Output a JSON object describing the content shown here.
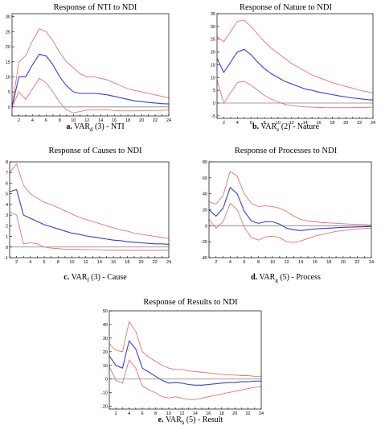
{
  "colors": {
    "band": "#e8736f",
    "center": "#3a3ae0",
    "zero": "#808080",
    "frame": "#000000"
  },
  "chart_data": [
    {
      "type": "line",
      "title": "Response of NTI to NDI",
      "caption": {
        "bold": "a.",
        "pre": " VAR",
        "sub": "d",
        "post": " (3) - NTI"
      },
      "x": [
        1,
        2,
        3,
        4,
        5,
        6,
        7,
        8,
        9,
        10,
        11,
        12,
        13,
        14,
        15,
        16,
        17,
        18,
        19,
        20,
        21,
        22,
        23,
        24
      ],
      "xticks": [
        2,
        4,
        6,
        8,
        10,
        12,
        14,
        16,
        18,
        20,
        22,
        24
      ],
      "yticks": [
        0,
        5,
        10,
        15,
        20,
        25,
        30
      ],
      "ylim": [
        -3,
        31
      ],
      "series": [
        {
          "role": "upper",
          "values": [
            0,
            15,
            17,
            22,
            26,
            25,
            22,
            18,
            15,
            13,
            11,
            10,
            10,
            9.5,
            9,
            8,
            7,
            6,
            5.5,
            5,
            4.5,
            4,
            3.5,
            3
          ]
        },
        {
          "role": "center",
          "values": [
            0,
            10,
            10,
            14,
            17.5,
            17,
            14,
            10,
            7,
            5,
            4.5,
            4.5,
            4.5,
            4.3,
            4,
            3.5,
            3,
            2.5,
            2,
            1.8,
            1.5,
            1.3,
            1.1,
            1
          ]
        },
        {
          "role": "lower",
          "values": [
            0,
            5,
            2.5,
            6,
            9.5,
            8,
            5,
            1.5,
            -1,
            -2,
            -1.5,
            -1,
            -1,
            -1,
            -1,
            -1.2,
            -1.3,
            -1.3,
            -1.3,
            -1.3,
            -1.2,
            -1.2,
            -1.1,
            -1
          ]
        }
      ]
    },
    {
      "type": "line",
      "title": "Response of Nature to NDI",
      "caption": {
        "bold": "b.",
        "pre": " VAR",
        "sub": "e",
        "post": " (2) - Nature"
      },
      "x": [
        1,
        2,
        3,
        4,
        5,
        6,
        7,
        8,
        9,
        10,
        11,
        12,
        13,
        14,
        15,
        16,
        17,
        18,
        19,
        20,
        21,
        22,
        23,
        24
      ],
      "xticks": [
        2,
        4,
        6,
        8,
        10,
        12,
        14,
        16,
        18,
        20,
        22,
        24
      ],
      "yticks": [
        -5,
        0,
        5,
        10,
        15,
        20,
        25,
        30,
        35
      ],
      "ylim": [
        -6,
        35
      ],
      "series": [
        {
          "role": "upper",
          "values": [
            26,
            24,
            28,
            32,
            32.5,
            30,
            27,
            24,
            21.5,
            19.5,
            17.5,
            15.5,
            14,
            12.5,
            11,
            10,
            9,
            8,
            7.2,
            6.5,
            5.8,
            5,
            4.5,
            4
          ]
        },
        {
          "role": "center",
          "values": [
            17.5,
            12,
            16,
            20,
            21,
            19,
            16,
            13.5,
            11.5,
            10,
            8.5,
            7.5,
            6.5,
            5.5,
            5,
            4.3,
            3.8,
            3.3,
            2.8,
            2.4,
            2,
            1.7,
            1.4,
            1.2
          ]
        },
        {
          "role": "lower",
          "values": [
            9,
            0,
            4,
            8,
            8.5,
            7,
            5,
            3,
            1.5,
            0.5,
            -0.5,
            -1,
            -1.3,
            -1.5,
            -1.6,
            -1.7,
            -1.8,
            -1.8,
            -1.8,
            -1.8,
            -1.8,
            -1.7,
            -1.7,
            -1.6
          ]
        }
      ]
    },
    {
      "type": "line",
      "title": "Response of Causes to NDI",
      "caption": {
        "bold": "c.",
        "pre": " VAR",
        "sub": "f",
        "post": " (3) - Cause"
      },
      "x": [
        1,
        2,
        3,
        4,
        5,
        6,
        7,
        8,
        9,
        10,
        11,
        12,
        13,
        14,
        15,
        16,
        17,
        18,
        19,
        20,
        21,
        22,
        23,
        24
      ],
      "xticks": [
        2,
        4,
        6,
        8,
        10,
        12,
        14,
        16,
        18,
        20,
        22,
        24
      ],
      "yticks": [
        -1,
        0,
        1,
        2,
        3,
        4,
        5,
        6,
        7,
        8
      ],
      "ylim": [
        -1,
        8
      ],
      "series": [
        {
          "role": "upper",
          "values": [
            7,
            7.8,
            5.8,
            5,
            4.6,
            4.2,
            4,
            3.7,
            3.4,
            3.1,
            2.8,
            2.6,
            2.4,
            2.2,
            2,
            1.8,
            1.6,
            1.5,
            1.3,
            1.2,
            1.1,
            1,
            0.9,
            0.8
          ]
        },
        {
          "role": "center",
          "values": [
            5.2,
            5.4,
            3,
            2.7,
            2.4,
            2.1,
            1.9,
            1.7,
            1.5,
            1.3,
            1.2,
            1.05,
            0.95,
            0.85,
            0.75,
            0.65,
            0.6,
            0.5,
            0.45,
            0.4,
            0.35,
            0.3,
            0.3,
            0.25
          ]
        },
        {
          "role": "lower",
          "values": [
            3.3,
            3,
            0.3,
            0.4,
            0.3,
            0,
            -0.1,
            -0.15,
            -0.2,
            -0.2,
            -0.2,
            -0.25,
            -0.25,
            -0.25,
            -0.3,
            -0.3,
            -0.3,
            -0.3,
            -0.3,
            -0.3,
            -0.3,
            -0.3,
            -0.3,
            -0.3
          ]
        }
      ]
    },
    {
      "type": "line",
      "title": "Response of Processes to NDI",
      "caption": {
        "bold": "d.",
        "pre": " VAR",
        "sub": "g",
        "post": " (5) - Process"
      },
      "x": [
        1,
        2,
        3,
        4,
        5,
        6,
        7,
        8,
        9,
        10,
        11,
        12,
        13,
        14,
        15,
        16,
        17,
        18,
        19,
        20,
        21,
        22,
        23,
        24
      ],
      "xticks": [
        2,
        4,
        6,
        8,
        10,
        12,
        14,
        16,
        18,
        20,
        22,
        24
      ],
      "yticks": [
        -40,
        -20,
        0,
        20,
        40,
        60,
        80
      ],
      "ylim": [
        -40,
        80
      ],
      "series": [
        {
          "role": "upper",
          "values": [
            30,
            27,
            38,
            68,
            62,
            40,
            28,
            24,
            25,
            24,
            22,
            18,
            12,
            8,
            6,
            5,
            4,
            3.5,
            3,
            2.5,
            2,
            1.8,
            1.5,
            1
          ]
        },
        {
          "role": "center",
          "values": [
            20,
            12,
            22,
            48,
            40,
            18,
            6,
            3,
            5,
            5,
            2,
            -3,
            -5,
            -6,
            -5,
            -4,
            -3.5,
            -3,
            -2.5,
            -2,
            -1.8,
            -1.5,
            -1.2,
            -1
          ]
        },
        {
          "role": "lower",
          "values": [
            8,
            -3,
            5,
            28,
            20,
            -2,
            -15,
            -18,
            -14,
            -13,
            -15,
            -20,
            -21,
            -19,
            -16,
            -13,
            -11,
            -9,
            -7,
            -6,
            -5,
            -4,
            -3.5,
            -3
          ]
        }
      ]
    },
    {
      "type": "line",
      "title": "Response of Results to NDI",
      "caption": {
        "bold": "e.",
        "pre": " VAR",
        "sub": "h",
        "post": " (5) - Result"
      },
      "x": [
        1,
        2,
        3,
        4,
        5,
        6,
        7,
        8,
        9,
        10,
        11,
        12,
        13,
        14,
        15,
        16,
        17,
        18,
        19,
        20,
        21,
        22,
        23,
        24
      ],
      "xticks": [
        2,
        4,
        6,
        8,
        10,
        12,
        14,
        16,
        18,
        20,
        22,
        24
      ],
      "yticks": [
        -20,
        -10,
        0,
        10,
        20,
        30,
        40,
        50
      ],
      "ylim": [
        -22,
        50
      ],
      "series": [
        {
          "role": "upper",
          "values": [
            26,
            21,
            20,
            42,
            35,
            20,
            16,
            13,
            10,
            8,
            7,
            7,
            6,
            5.5,
            5,
            4.5,
            4,
            3.5,
            3,
            3,
            2.5,
            2.5,
            2,
            2
          ]
        },
        {
          "role": "center",
          "values": [
            17,
            10,
            8,
            28,
            22,
            8,
            5,
            2,
            -1,
            -3,
            -2.5,
            -3,
            -4,
            -4.5,
            -4.5,
            -4,
            -3.5,
            -3,
            -2.5,
            -2.5,
            -2,
            -2,
            -1.5,
            -1.5
          ]
        },
        {
          "role": "lower",
          "values": [
            9,
            -1,
            -3,
            14,
            8,
            -5,
            -8,
            -10,
            -13,
            -14,
            -13,
            -14,
            -15,
            -15,
            -14,
            -13,
            -12,
            -11,
            -10,
            -9,
            -8,
            -7,
            -6,
            -5.5
          ]
        }
      ]
    }
  ]
}
